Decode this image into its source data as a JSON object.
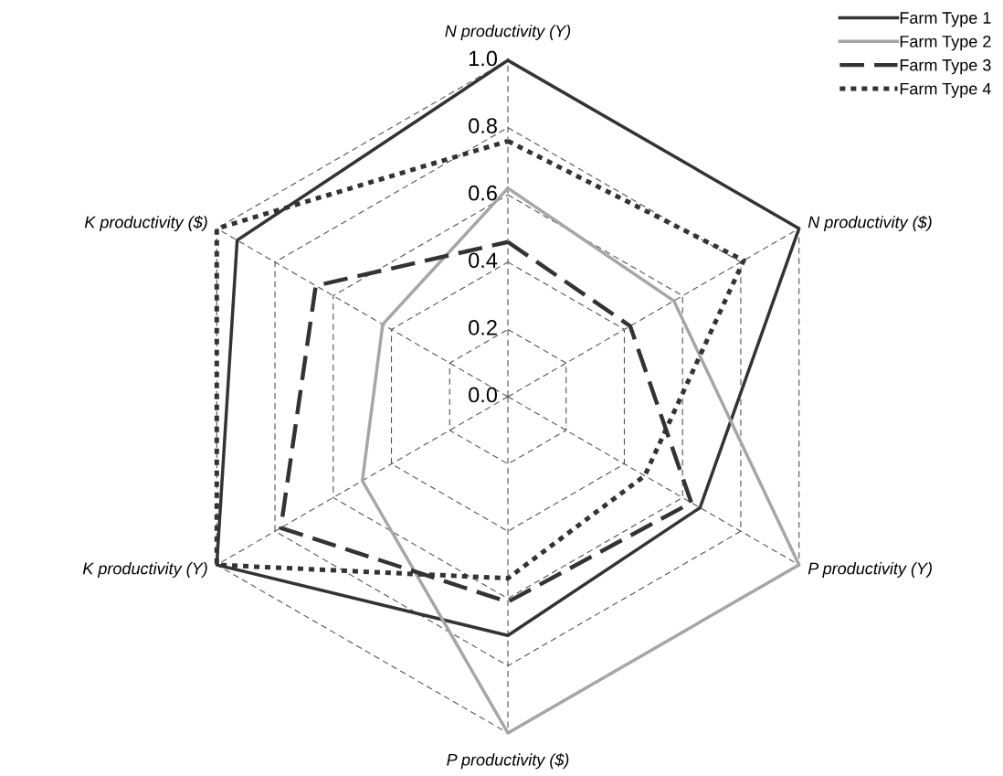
{
  "chart_data": {
    "type": "radar",
    "categories": [
      "N productivity (Y)",
      "N productivity ($)",
      "P productivity (Y)",
      "P productivity ($)",
      "K productivity (Y)",
      "K productivity ($)"
    ],
    "series": [
      {
        "name": "Farm Type 1",
        "color": "#333333",
        "line_style": "solid",
        "values": [
          1.0,
          1.0,
          0.66,
          0.71,
          1.0,
          0.93
        ]
      },
      {
        "name": "Farm Type 2",
        "color": "#a6a6a6",
        "line_style": "solid",
        "values": [
          0.62,
          0.57,
          1.0,
          1.0,
          0.5,
          0.43
        ]
      },
      {
        "name": "Farm Type 3",
        "color": "#333333",
        "line_style": "dashed",
        "values": [
          0.46,
          0.42,
          0.63,
          0.61,
          0.78,
          0.66
        ]
      },
      {
        "name": "Farm Type 4",
        "color": "#333333",
        "line_style": "dotted",
        "values": [
          0.76,
          0.81,
          0.47,
          0.54,
          1.0,
          1.0
        ]
      }
    ],
    "ylim": [
      0,
      1
    ],
    "yticks": [
      {
        "value": 0,
        "label": "0.0"
      },
      {
        "value": 0.2,
        "label": "0.2"
      },
      {
        "value": 0.4,
        "label": "0.4"
      },
      {
        "value": 0.6,
        "label": "0.6"
      },
      {
        "value": 0.8,
        "label": "0.8"
      },
      {
        "value": 1,
        "label": "1.0"
      }
    ],
    "grid": true,
    "legend": "top right"
  }
}
